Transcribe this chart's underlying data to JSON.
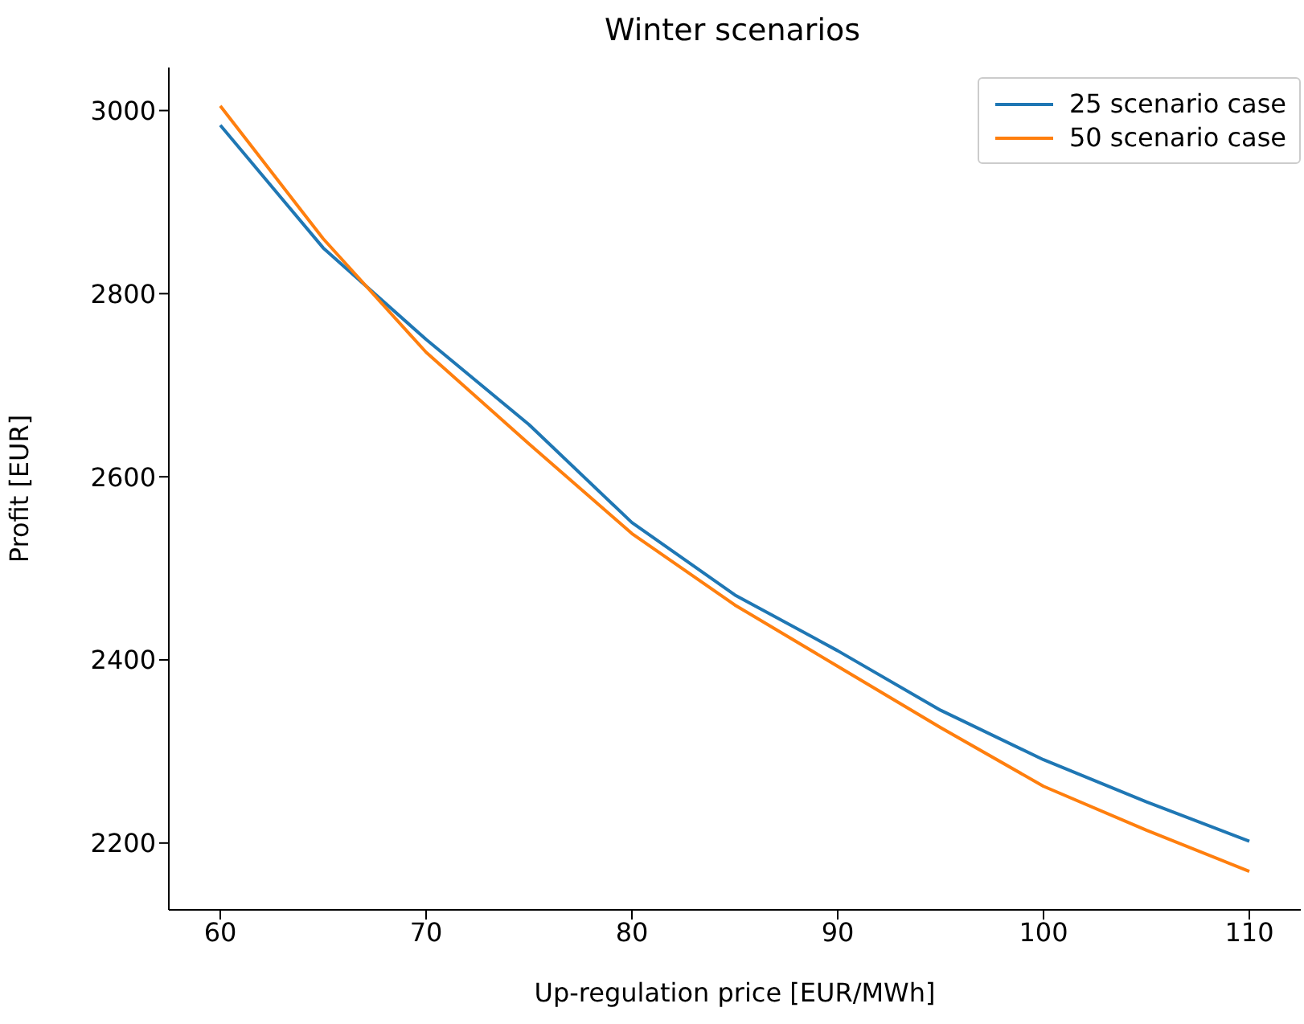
{
  "chart_data": {
    "type": "line",
    "title": "Winter scenarios",
    "xlabel": "Up-regulation price [EUR/MWh]",
    "ylabel": "Profit [EUR]",
    "x": [
      60,
      65,
      70,
      75,
      80,
      85,
      90,
      95,
      100,
      105,
      110
    ],
    "series": [
      {
        "name": "25 scenario case",
        "color": "#1f77b4",
        "values": [
          2984,
          2850,
          2750,
          2657,
          2550,
          2471,
          2410,
          2345,
          2291,
          2245,
          2202
        ]
      },
      {
        "name": "50 scenario case",
        "color": "#ff7f0e",
        "values": [
          3005,
          2860,
          2736,
          2636,
          2538,
          2460,
          2393,
          2326,
          2262,
          2214,
          2169
        ]
      }
    ],
    "xlim": [
      57.5,
      112.5
    ],
    "xticks": [
      60,
      70,
      80,
      90,
      100,
      110
    ],
    "ylim": [
      2127,
      3047
    ],
    "yticks": [
      2200,
      2400,
      2600,
      2800,
      3000
    ],
    "grid": false,
    "legend": "top right",
    "marker": "none",
    "line_style": "solid"
  }
}
